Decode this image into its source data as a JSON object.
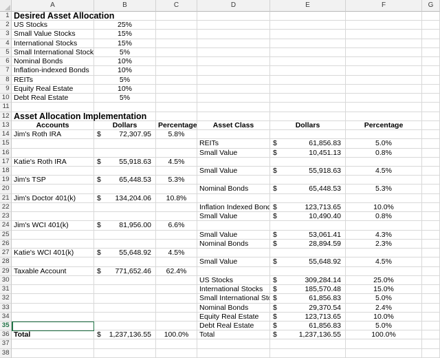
{
  "sheet": {
    "column_letters": [
      "A",
      "B",
      "C",
      "D",
      "E",
      "F",
      "G"
    ],
    "row_numbers": [
      1,
      2,
      3,
      4,
      5,
      6,
      7,
      8,
      9,
      10,
      11,
      12,
      13,
      14,
      15,
      16,
      17,
      18,
      19,
      20,
      21,
      22,
      23,
      24,
      25,
      26,
      27,
      28,
      29,
      30,
      31,
      32,
      33,
      34,
      35,
      36,
      37,
      38
    ],
    "active_cell": {
      "col": "A",
      "row": 35
    },
    "colors": {
      "selection_green": "#217346",
      "grid_line": "#d8d8d8",
      "header_bg": "#f2f2f2"
    },
    "section_titles": {
      "desired": "Desired Asset Allocation",
      "implementation": "Asset Allocation Implementation"
    },
    "rows": [
      {
        "n": 1,
        "cells": [
          {
            "col": "A",
            "style": "title",
            "text": "Desired Asset Allocation"
          }
        ]
      },
      {
        "n": 2,
        "cells": [
          {
            "col": "A",
            "text": "US Stocks"
          },
          {
            "col": "B",
            "style": "pct",
            "text": "25%"
          }
        ]
      },
      {
        "n": 3,
        "cells": [
          {
            "col": "A",
            "text": "Small Value Stocks"
          },
          {
            "col": "B",
            "style": "pct",
            "text": "15%"
          }
        ]
      },
      {
        "n": 4,
        "cells": [
          {
            "col": "A",
            "text": "International Stocks"
          },
          {
            "col": "B",
            "style": "pct",
            "text": "15%"
          }
        ]
      },
      {
        "n": 5,
        "cells": [
          {
            "col": "A",
            "text": "Small International Stocks"
          },
          {
            "col": "B",
            "style": "pct",
            "text": "5%"
          }
        ]
      },
      {
        "n": 6,
        "cells": [
          {
            "col": "A",
            "text": "Nominal Bonds"
          },
          {
            "col": "B",
            "style": "pct",
            "text": "10%"
          }
        ]
      },
      {
        "n": 7,
        "cells": [
          {
            "col": "A",
            "text": "Inflation-indexed Bonds"
          },
          {
            "col": "B",
            "style": "pct",
            "text": "10%"
          }
        ]
      },
      {
        "n": 8,
        "cells": [
          {
            "col": "A",
            "text": "REITs"
          },
          {
            "col": "B",
            "style": "pct",
            "text": "5%"
          }
        ]
      },
      {
        "n": 9,
        "cells": [
          {
            "col": "A",
            "text": "Equity Real Estate"
          },
          {
            "col": "B",
            "style": "pct",
            "text": "10%"
          }
        ]
      },
      {
        "n": 10,
        "cells": [
          {
            "col": "A",
            "text": "Debt Real Estate"
          },
          {
            "col": "B",
            "style": "pct",
            "text": "5%"
          }
        ]
      },
      {
        "n": 11,
        "cells": []
      },
      {
        "n": 12,
        "cells": [
          {
            "col": "A",
            "style": "title",
            "text": "Asset Allocation Implementation"
          }
        ]
      },
      {
        "n": 13,
        "cells": [
          {
            "col": "A",
            "style": "hdr",
            "text": "Accounts"
          },
          {
            "col": "B",
            "style": "hdr",
            "text": "Dollars"
          },
          {
            "col": "C",
            "style": "hdr",
            "text": "Percentage"
          },
          {
            "col": "D",
            "style": "hdr",
            "text": "Asset Class"
          },
          {
            "col": "E",
            "style": "hdr",
            "text": "Dollars"
          },
          {
            "col": "F",
            "style": "hdr",
            "text": "Percentage"
          }
        ]
      },
      {
        "n": 14,
        "cells": [
          {
            "col": "A",
            "text": "Jim's Roth IRA"
          },
          {
            "col": "B",
            "style": "money",
            "currency": "$",
            "amount": "72,307.95"
          },
          {
            "col": "C",
            "style": "pct",
            "text": "5.8%"
          }
        ]
      },
      {
        "n": 15,
        "cells": [
          {
            "col": "D",
            "text": "REITs"
          },
          {
            "col": "E",
            "style": "money",
            "currency": "$",
            "amount": "61,856.83"
          },
          {
            "col": "F",
            "style": "pct",
            "text": "5.0%"
          }
        ]
      },
      {
        "n": 16,
        "cells": [
          {
            "col": "D",
            "text": "Small Value"
          },
          {
            "col": "E",
            "style": "money",
            "currency": "$",
            "amount": "10,451.13"
          },
          {
            "col": "F",
            "style": "pct",
            "text": "0.8%"
          }
        ]
      },
      {
        "n": 17,
        "cells": [
          {
            "col": "A",
            "text": "Katie's Roth IRA"
          },
          {
            "col": "B",
            "style": "money",
            "currency": "$",
            "amount": "55,918.63"
          },
          {
            "col": "C",
            "style": "pct",
            "text": "4.5%"
          }
        ]
      },
      {
        "n": 18,
        "cells": [
          {
            "col": "D",
            "text": "Small Value"
          },
          {
            "col": "E",
            "style": "money",
            "currency": "$",
            "amount": "55,918.63"
          },
          {
            "col": "F",
            "style": "pct",
            "text": "4.5%"
          }
        ]
      },
      {
        "n": 19,
        "cells": [
          {
            "col": "A",
            "text": "Jim's TSP"
          },
          {
            "col": "B",
            "style": "money",
            "currency": "$",
            "amount": "65,448.53"
          },
          {
            "col": "C",
            "style": "pct",
            "text": "5.3%"
          }
        ]
      },
      {
        "n": 20,
        "cells": [
          {
            "col": "D",
            "text": "Nominal Bonds"
          },
          {
            "col": "E",
            "style": "money",
            "currency": "$",
            "amount": "65,448.53"
          },
          {
            "col": "F",
            "style": "pct",
            "text": "5.3%"
          }
        ]
      },
      {
        "n": 21,
        "cells": [
          {
            "col": "A",
            "text": "Jim's Doctor 401(k)"
          },
          {
            "col": "B",
            "style": "money",
            "currency": "$",
            "amount": "134,204.06"
          },
          {
            "col": "C",
            "style": "pct",
            "text": "10.8%"
          }
        ]
      },
      {
        "n": 22,
        "cells": [
          {
            "col": "D",
            "text": "Inflation Indexed Bonds"
          },
          {
            "col": "E",
            "style": "money",
            "currency": "$",
            "amount": "123,713.65"
          },
          {
            "col": "F",
            "style": "pct",
            "text": "10.0%"
          }
        ]
      },
      {
        "n": 23,
        "cells": [
          {
            "col": "D",
            "text": "Small Value"
          },
          {
            "col": "E",
            "style": "money",
            "currency": "$",
            "amount": "10,490.40"
          },
          {
            "col": "F",
            "style": "pct",
            "text": "0.8%"
          }
        ]
      },
      {
        "n": 24,
        "cells": [
          {
            "col": "A",
            "text": "Jim's WCI 401(k)"
          },
          {
            "col": "B",
            "style": "money",
            "currency": "$",
            "amount": "81,956.00"
          },
          {
            "col": "C",
            "style": "pct",
            "text": "6.6%"
          }
        ]
      },
      {
        "n": 25,
        "cells": [
          {
            "col": "D",
            "text": "Small Value"
          },
          {
            "col": "E",
            "style": "money",
            "currency": "$",
            "amount": "53,061.41"
          },
          {
            "col": "F",
            "style": "pct",
            "text": "4.3%"
          }
        ]
      },
      {
        "n": 26,
        "cells": [
          {
            "col": "D",
            "text": "Nominal Bonds"
          },
          {
            "col": "E",
            "style": "money",
            "currency": "$",
            "amount": "28,894.59"
          },
          {
            "col": "F",
            "style": "pct",
            "text": "2.3%"
          }
        ]
      },
      {
        "n": 27,
        "cells": [
          {
            "col": "A",
            "text": "Katie's WCI 401(k)"
          },
          {
            "col": "B",
            "style": "money",
            "currency": "$",
            "amount": "55,648.92"
          },
          {
            "col": "C",
            "style": "pct",
            "text": "4.5%"
          }
        ]
      },
      {
        "n": 28,
        "cells": [
          {
            "col": "D",
            "text": "Small Value"
          },
          {
            "col": "E",
            "style": "money",
            "currency": "$",
            "amount": "55,648.92"
          },
          {
            "col": "F",
            "style": "pct",
            "text": "4.5%"
          }
        ]
      },
      {
        "n": 29,
        "cells": [
          {
            "col": "A",
            "text": "Taxable Account"
          },
          {
            "col": "B",
            "style": "money",
            "currency": "$",
            "amount": "771,652.46"
          },
          {
            "col": "C",
            "style": "pct",
            "text": "62.4%"
          }
        ]
      },
      {
        "n": 30,
        "cells": [
          {
            "col": "D",
            "text": "US Stocks"
          },
          {
            "col": "E",
            "style": "money",
            "currency": "$",
            "amount": "309,284.14"
          },
          {
            "col": "F",
            "style": "pct",
            "text": "25.0%"
          }
        ]
      },
      {
        "n": 31,
        "cells": [
          {
            "col": "D",
            "text": "International Stocks"
          },
          {
            "col": "E",
            "style": "money",
            "currency": "$",
            "amount": "185,570.48"
          },
          {
            "col": "F",
            "style": "pct",
            "text": "15.0%"
          }
        ]
      },
      {
        "n": 32,
        "cells": [
          {
            "col": "D",
            "text": "Small International Stocks"
          },
          {
            "col": "E",
            "style": "money",
            "currency": "$",
            "amount": "61,856.83"
          },
          {
            "col": "F",
            "style": "pct",
            "text": "5.0%"
          }
        ]
      },
      {
        "n": 33,
        "cells": [
          {
            "col": "D",
            "text": "Nominal Bonds"
          },
          {
            "col": "E",
            "style": "money",
            "currency": "$",
            "amount": "29,370.54"
          },
          {
            "col": "F",
            "style": "pct",
            "text": "2.4%"
          }
        ]
      },
      {
        "n": 34,
        "cells": [
          {
            "col": "D",
            "text": "Equity Real Estate"
          },
          {
            "col": "E",
            "style": "money",
            "currency": "$",
            "amount": "123,713.65"
          },
          {
            "col": "F",
            "style": "pct",
            "text": "10.0%"
          }
        ]
      },
      {
        "n": 35,
        "cells": [
          {
            "col": "D",
            "text": "Debt Real Estate"
          },
          {
            "col": "E",
            "style": "money",
            "currency": "$",
            "amount": "61,856.83"
          },
          {
            "col": "F",
            "style": "pct",
            "text": "5.0%"
          }
        ]
      },
      {
        "n": 36,
        "cells": [
          {
            "col": "A",
            "style": "bold",
            "text": "Total"
          },
          {
            "col": "B",
            "style": "money",
            "currency": "$",
            "amount": "1,237,136.55"
          },
          {
            "col": "C",
            "style": "pct",
            "text": "100.0%"
          },
          {
            "col": "D",
            "text": "Total"
          },
          {
            "col": "E",
            "style": "money",
            "currency": "$",
            "amount": "1,237,136.55"
          },
          {
            "col": "F",
            "style": "pct",
            "text": "100.0%"
          }
        ]
      },
      {
        "n": 37,
        "cells": []
      },
      {
        "n": 38,
        "cells": []
      }
    ]
  }
}
